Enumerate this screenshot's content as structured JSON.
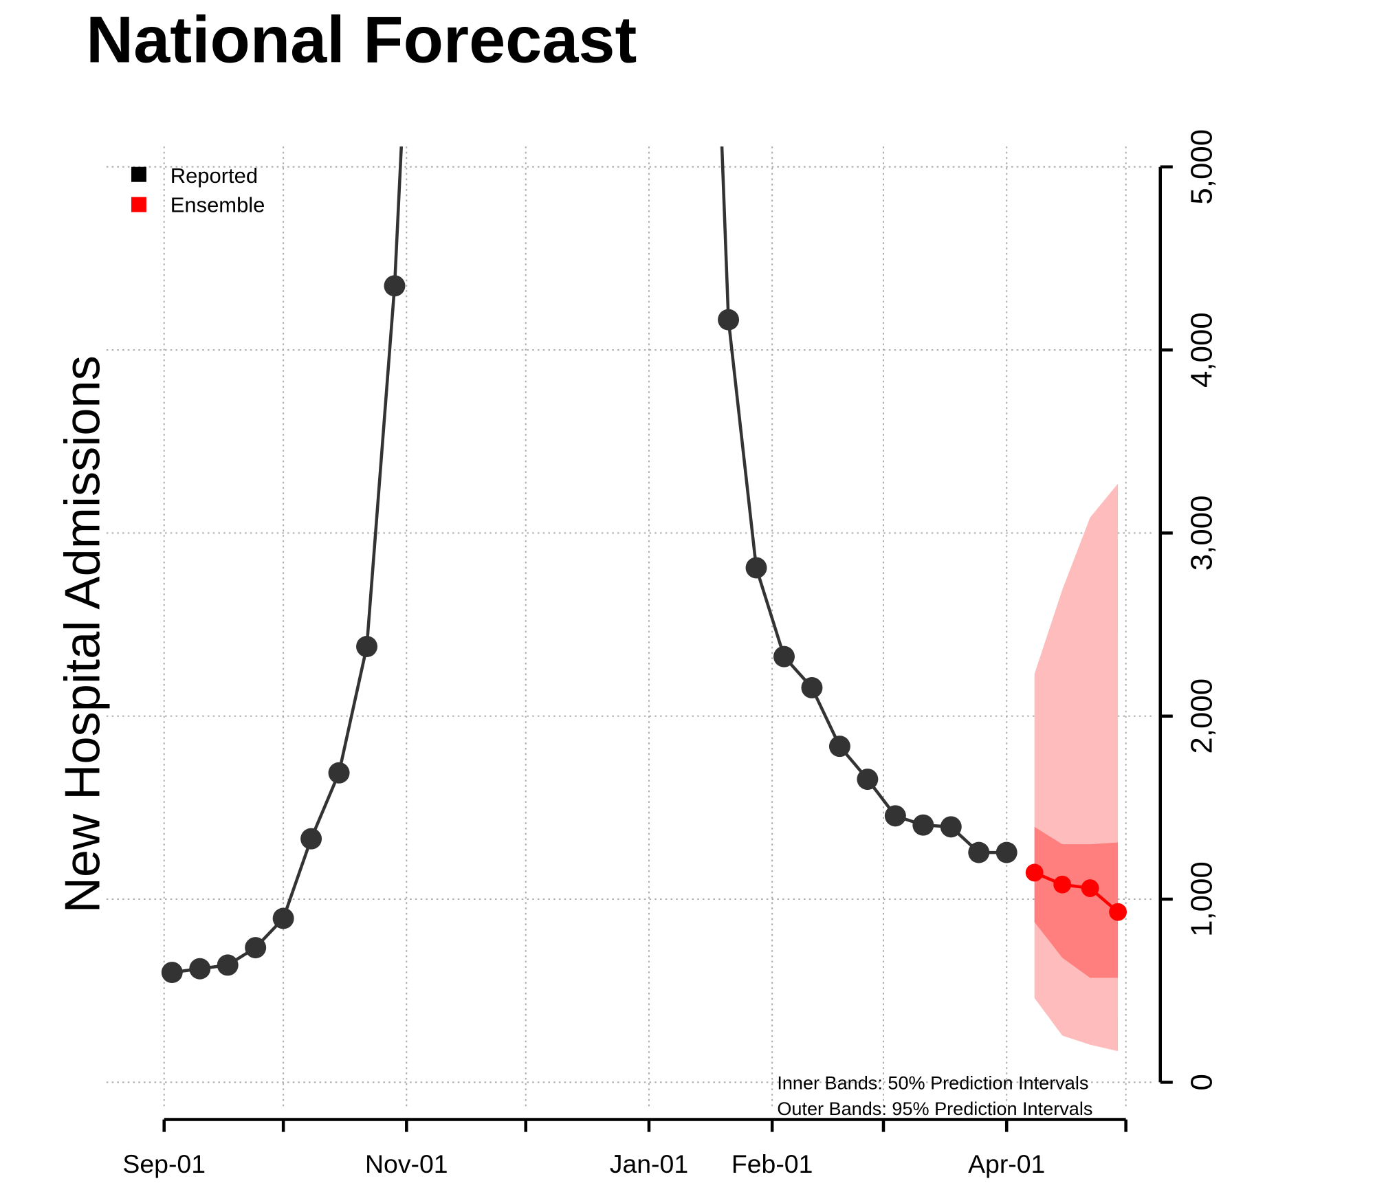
{
  "chart_data": {
    "type": "line",
    "title": "National Forecast",
    "ylabel": "New Hospital Admissions",
    "xlabel": "",
    "ylim": [
      0,
      5000
    ],
    "yticks": [
      "0",
      "1,000",
      "2,000",
      "3,000",
      "4,000",
      "5,000"
    ],
    "ytick_values": [
      0,
      1000,
      2000,
      3000,
      4000,
      5000
    ],
    "xticks": [
      {
        "date": "Sep-01",
        "label": "Sep-01"
      },
      {
        "date": "Oct-01",
        "label": ""
      },
      {
        "date": "Nov-01",
        "label": "Nov-01"
      },
      {
        "date": "Dec-01",
        "label": ""
      },
      {
        "date": "Jan-01",
        "label": "Jan-01"
      },
      {
        "date": "Feb-01",
        "label": "Feb-01"
      },
      {
        "date": "Mar-01",
        "label": ""
      },
      {
        "date": "Apr-01",
        "label": "Apr-01"
      },
      {
        "date": "May-01",
        "label": ""
      }
    ],
    "grid": true,
    "legend_position": "top-left",
    "legend": [
      {
        "label": "Reported",
        "color": "#000000"
      },
      {
        "label": "Ensemble",
        "color": "#ff0000"
      }
    ],
    "annotations": [
      "Inner Bands: 50% Prediction Intervals",
      "Outer Bands: 95% Prediction Intervals"
    ],
    "series": [
      {
        "name": "Reported",
        "color": "#333333",
        "points": [
          {
            "date": "Sep-03",
            "value": 600
          },
          {
            "date": "Sep-10",
            "value": 620
          },
          {
            "date": "Sep-17",
            "value": 640
          },
          {
            "date": "Sep-24",
            "value": 735
          },
          {
            "date": "Oct-01",
            "value": 895
          },
          {
            "date": "Oct-08",
            "value": 1330
          },
          {
            "date": "Oct-15",
            "value": 1690
          },
          {
            "date": "Oct-22",
            "value": 2380
          },
          {
            "date": "Oct-29",
            "value": 4350
          },
          {
            "date": "Jan-21",
            "value": 4165
          },
          {
            "date": "Jan-28",
            "value": 2810
          },
          {
            "date": "Feb-04",
            "value": 2325
          },
          {
            "date": "Feb-11",
            "value": 2155
          },
          {
            "date": "Feb-18",
            "value": 1835
          },
          {
            "date": "Feb-25",
            "value": 1655
          },
          {
            "date": "Mar-04",
            "value": 1455
          },
          {
            "date": "Mar-11",
            "value": 1405
          },
          {
            "date": "Mar-18",
            "value": 1395
          },
          {
            "date": "Mar-25",
            "value": 1255
          },
          {
            "date": "Apr-01",
            "value": 1255
          }
        ]
      },
      {
        "name": "Ensemble",
        "color": "#ff0000",
        "points": [
          {
            "date": "Apr-08",
            "value": 1145,
            "pi50": [
              875,
              1395
            ],
            "pi95": [
              460,
              2230
            ]
          },
          {
            "date": "Apr-15",
            "value": 1080,
            "pi50": [
              680,
              1300
            ],
            "pi95": [
              255,
              2690
            ]
          },
          {
            "date": "Apr-22",
            "value": 1060,
            "pi50": [
              570,
              1300
            ],
            "pi95": [
              205,
              3085
            ]
          },
          {
            "date": "Apr-29",
            "value": 930,
            "pi50": [
              570,
              1310
            ],
            "pi95": [
              170,
              3270
            ]
          }
        ]
      }
    ],
    "band_colors": {
      "pi50": "#ff7f7f",
      "pi95": "#ffbcbc"
    }
  }
}
